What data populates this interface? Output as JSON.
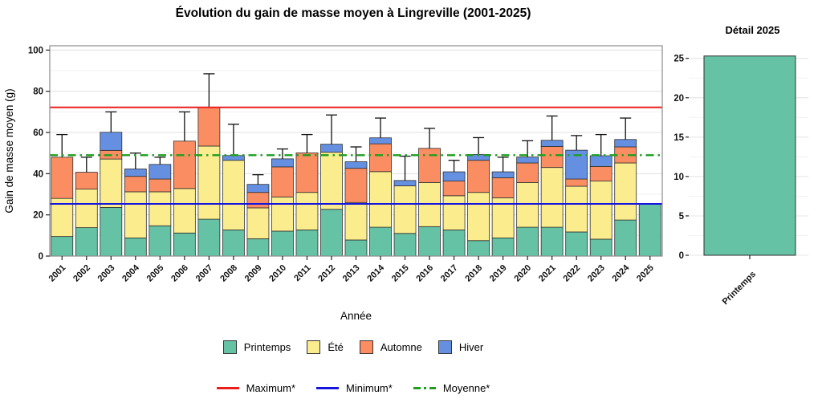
{
  "main": {
    "title": "Évolution du gain de masse moyen à Lingreville (2001-2025)",
    "xlabel": "Année",
    "ylabel": "Gain de masse moyen (g)"
  },
  "detail": {
    "title": "Détail 2025",
    "category": "Printemps"
  },
  "legend": {
    "seasons": [
      {
        "label": "Printemps",
        "color": "#66C2A5"
      },
      {
        "label": "Été",
        "color": "#FBEC8D"
      },
      {
        "label": "Automne",
        "color": "#FB8D62"
      },
      {
        "label": "Hiver",
        "color": "#6590E2"
      }
    ],
    "lines": [
      {
        "label": "Maximum*",
        "color": "#EB1E1E",
        "style": "solid"
      },
      {
        "label": "Minimum*",
        "color": "#1515DD",
        "style": "solid"
      },
      {
        "label": "Moyenne*",
        "color": "#1E9E1E",
        "style": "dashdot"
      }
    ]
  },
  "chart_data": [
    {
      "type": "bar",
      "stacked": true,
      "title": "Évolution du gain de masse moyen à Lingreville (2001-2025)",
      "xlabel": "Année",
      "ylabel": "Gain de masse moyen (g)",
      "ylim": [
        0,
        102
      ],
      "yticks": [
        0,
        20,
        40,
        60,
        80,
        100
      ],
      "grid": true,
      "legend_position": "bottom",
      "categories": [
        "2001",
        "2002",
        "2003",
        "2004",
        "2005",
        "2006",
        "2007",
        "2008",
        "2009",
        "2010",
        "2011",
        "2012",
        "2013",
        "2014",
        "2015",
        "2016",
        "2017",
        "2018",
        "2019",
        "2020",
        "2021",
        "2022",
        "2023",
        "2024",
        "2025"
      ],
      "series": [
        {
          "name": "Printemps",
          "color": "#66C2A5",
          "values": [
            9.5,
            13.8,
            23.6,
            8.8,
            14.7,
            11.2,
            17.9,
            12.7,
            8.4,
            12.1,
            12.7,
            22.7,
            7.8,
            14.0,
            11.0,
            14.3,
            12.7,
            7.5,
            8.8,
            14.0,
            14.0,
            11.7,
            8.2,
            17.5,
            25.3
          ]
        },
        {
          "name": "Été",
          "color": "#FBEC8D",
          "values": [
            18.5,
            18.7,
            23.5,
            22.4,
            16.5,
            21.6,
            35.5,
            33.8,
            15.0,
            16.6,
            18.2,
            27.7,
            18.2,
            27.0,
            23.1,
            21.4,
            16.6,
            23.4,
            19.5,
            21.7,
            29.0,
            22.2,
            28.2,
            27.7,
            0
          ]
        },
        {
          "name": "Automne",
          "color": "#FB8D62",
          "values": [
            20.0,
            8.2,
            4.2,
            7.5,
            6.2,
            23.0,
            18.8,
            0,
            7.5,
            14.6,
            19.2,
            0,
            16.6,
            13.5,
            0,
            16.6,
            7.1,
            15.6,
            9.7,
            9.5,
            10.2,
            3.5,
            7.1,
            7.8,
            0
          ]
        },
        {
          "name": "Hiver",
          "color": "#6590E2",
          "values": [
            0,
            0,
            8.8,
            3.6,
            7.1,
            0,
            0,
            2.3,
            3.9,
            3.9,
            0,
            3.9,
            3.2,
            2.9,
            2.6,
            0,
            4.5,
            2.8,
            2.9,
            2.9,
            3.0,
            14.0,
            5.2,
            3.6,
            0
          ]
        }
      ],
      "error_upper": [
        59,
        48,
        70,
        50,
        48,
        70,
        88.5,
        64,
        39.5,
        52,
        59,
        68.5,
        53,
        67,
        48.5,
        62,
        46.5,
        57.5,
        48,
        56,
        68,
        58.5,
        59,
        67,
        null
      ],
      "ref_lines": [
        {
          "label": "Maximum*",
          "value": 72.2,
          "color": "#EB1E1E",
          "style": "solid"
        },
        {
          "label": "Minimum*",
          "value": 25.35,
          "color": "#1515DD",
          "style": "solid"
        },
        {
          "label": "Moyenne*",
          "value": 49.0,
          "color": "#1E9E1E",
          "style": "dashdot"
        }
      ]
    },
    {
      "type": "bar",
      "title": "Détail 2025",
      "categories": [
        "Printemps"
      ],
      "values": [
        25.3
      ],
      "color": "#66C2A5",
      "ylim": [
        0,
        26
      ],
      "yticks": [
        0,
        5,
        10,
        15,
        20,
        25
      ],
      "grid": true
    }
  ]
}
